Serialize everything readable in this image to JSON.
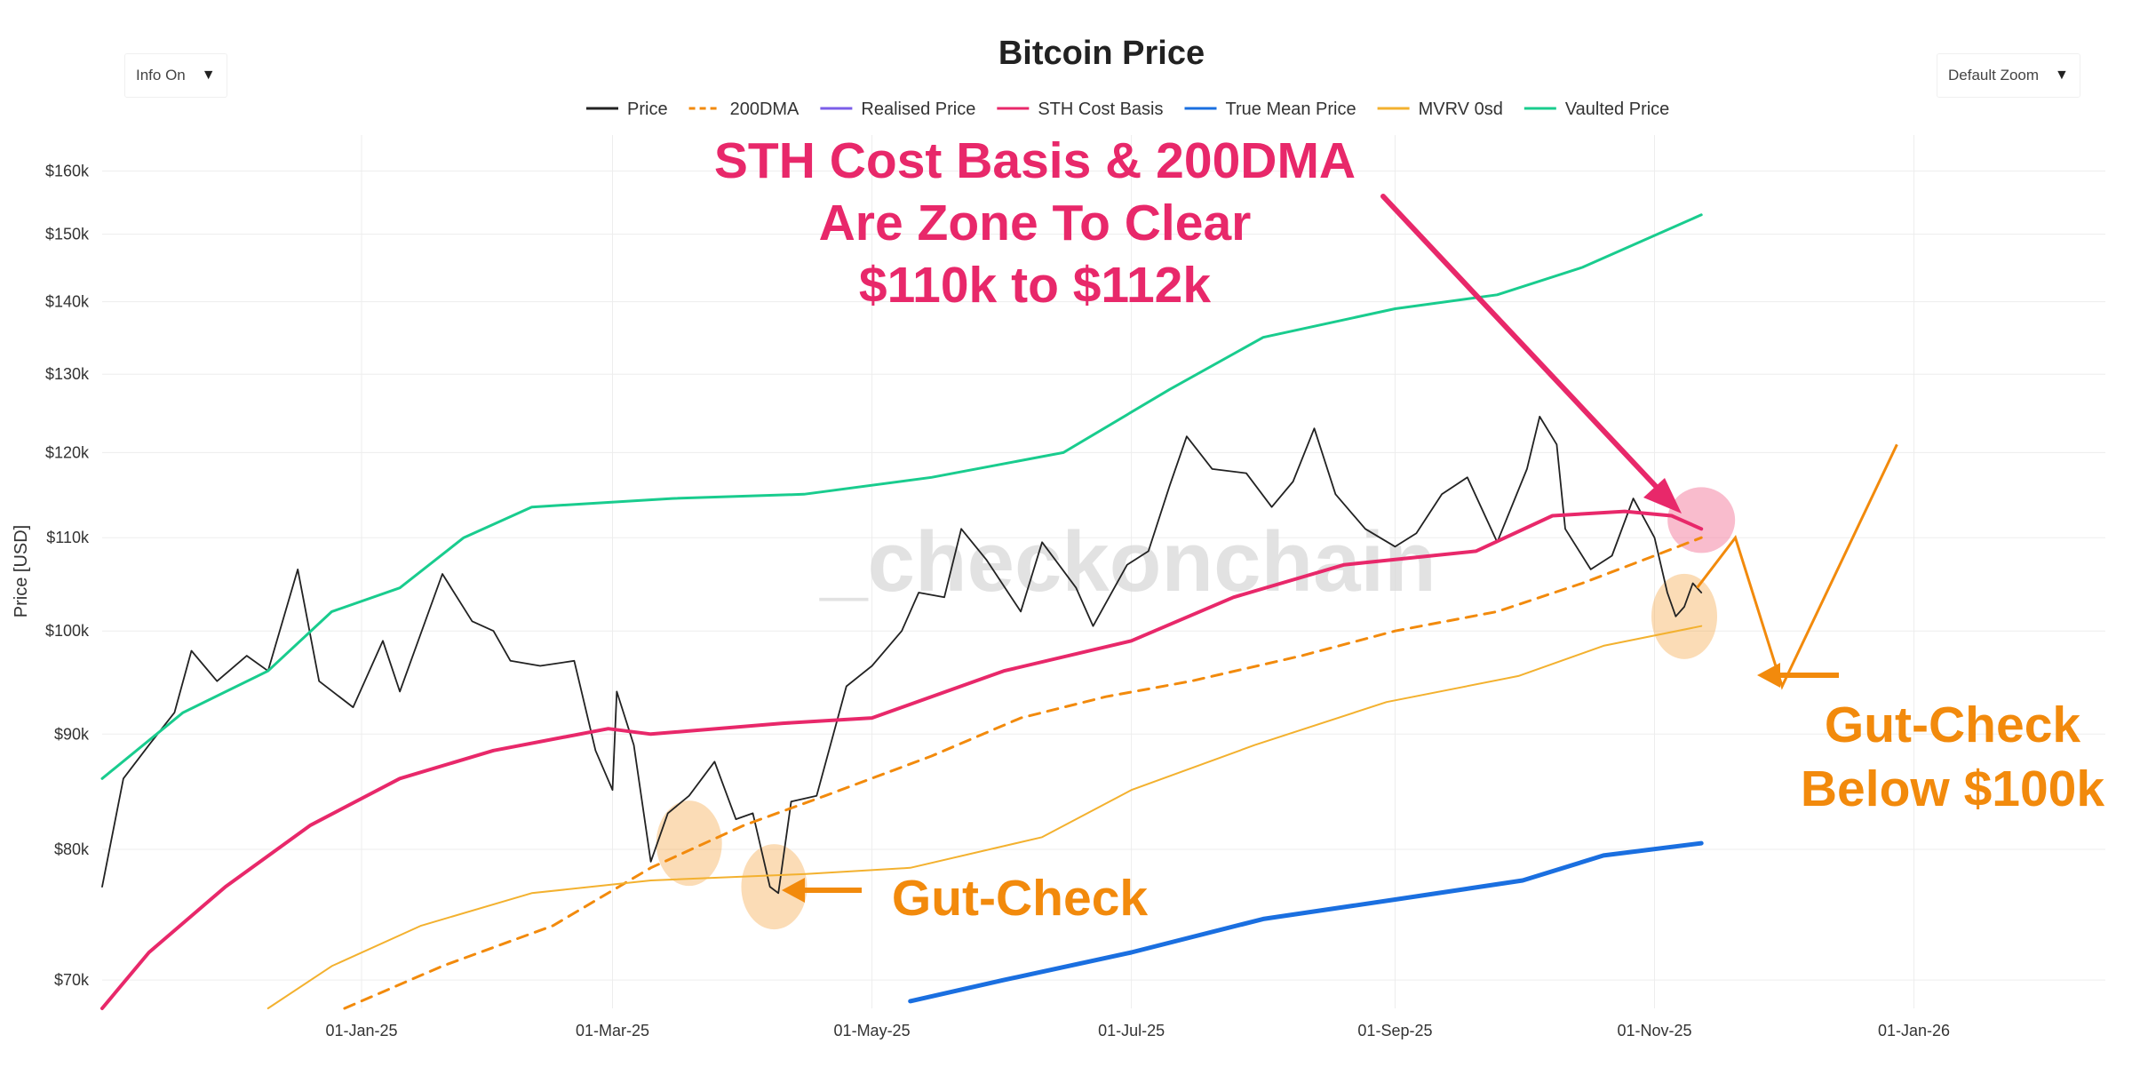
{
  "chart_data": {
    "type": "line",
    "title": "Bitcoin Price",
    "ylabel": "Price [USD]",
    "xlabel": "",
    "yscale": "log",
    "ylim": [
      68000,
      166000
    ],
    "xlim": [
      "2024-11-01",
      "2026-02-15"
    ],
    "x_ticks": [
      {
        "date": "2025-01-01",
        "label": "01-Jan-25"
      },
      {
        "date": "2025-03-01",
        "label": "01-Mar-25"
      },
      {
        "date": "2025-05-01",
        "label": "01-May-25"
      },
      {
        "date": "2025-07-01",
        "label": "01-Jul-25"
      },
      {
        "date": "2025-09-01",
        "label": "01-Sep-25"
      },
      {
        "date": "2025-11-01",
        "label": "01-Nov-25"
      },
      {
        "date": "2026-01-01",
        "label": "01-Jan-26"
      }
    ],
    "y_ticks": [
      {
        "value": 70000,
        "label": "$70k"
      },
      {
        "value": 80000,
        "label": "$80k"
      },
      {
        "value": 90000,
        "label": "$90k"
      },
      {
        "value": 100000,
        "label": "$100k"
      },
      {
        "value": 110000,
        "label": "$110k"
      },
      {
        "value": 120000,
        "label": "$120k"
      },
      {
        "value": 130000,
        "label": "$130k"
      },
      {
        "value": 140000,
        "label": "$140k"
      },
      {
        "value": 150000,
        "label": "$150k"
      },
      {
        "value": 160000,
        "label": "$160k"
      }
    ],
    "legend_position": "top-center",
    "series": [
      {
        "name": "Price",
        "color": "#222222",
        "style": "solid",
        "points": [
          [
            "2024-11-01",
            77000
          ],
          [
            "2024-11-06",
            86000
          ],
          [
            "2024-11-12",
            89000
          ],
          [
            "2024-11-18",
            92000
          ],
          [
            "2024-11-22",
            98000
          ],
          [
            "2024-11-28",
            95000
          ],
          [
            "2024-12-05",
            97500
          ],
          [
            "2024-12-10",
            96000
          ],
          [
            "2024-12-17",
            106500
          ],
          [
            "2024-12-22",
            95000
          ],
          [
            "2024-12-30",
            92500
          ],
          [
            "2025-01-06",
            99000
          ],
          [
            "2025-01-10",
            94000
          ],
          [
            "2025-01-20",
            106000
          ],
          [
            "2025-01-27",
            101000
          ],
          [
            "2025-02-01",
            100000
          ],
          [
            "2025-02-05",
            97000
          ],
          [
            "2025-02-12",
            96500
          ],
          [
            "2025-02-20",
            97000
          ],
          [
            "2025-02-25",
            88500
          ],
          [
            "2025-03-01",
            85000
          ],
          [
            "2025-03-02",
            94000
          ],
          [
            "2025-03-06",
            89000
          ],
          [
            "2025-03-10",
            79000
          ],
          [
            "2025-03-14",
            83000
          ],
          [
            "2025-03-19",
            84500
          ],
          [
            "2025-03-25",
            87500
          ],
          [
            "2025-03-30",
            82500
          ],
          [
            "2025-04-03",
            83000
          ],
          [
            "2025-04-07",
            77000
          ],
          [
            "2025-04-09",
            76500
          ],
          [
            "2025-04-12",
            84000
          ],
          [
            "2025-04-18",
            84500
          ],
          [
            "2025-04-25",
            94500
          ],
          [
            "2025-05-01",
            96500
          ],
          [
            "2025-05-08",
            100000
          ],
          [
            "2025-05-12",
            104000
          ],
          [
            "2025-05-18",
            103500
          ],
          [
            "2025-05-22",
            111000
          ],
          [
            "2025-05-28",
            107500
          ],
          [
            "2025-06-05",
            102000
          ],
          [
            "2025-06-10",
            109500
          ],
          [
            "2025-06-18",
            104500
          ],
          [
            "2025-06-22",
            100500
          ],
          [
            "2025-06-30",
            107000
          ],
          [
            "2025-07-05",
            108500
          ],
          [
            "2025-07-10",
            116000
          ],
          [
            "2025-07-14",
            122000
          ],
          [
            "2025-07-20",
            118000
          ],
          [
            "2025-07-28",
            117500
          ],
          [
            "2025-08-03",
            113500
          ],
          [
            "2025-08-08",
            116500
          ],
          [
            "2025-08-13",
            123000
          ],
          [
            "2025-08-18",
            115000
          ],
          [
            "2025-08-25",
            111000
          ],
          [
            "2025-09-01",
            109000
          ],
          [
            "2025-09-06",
            110500
          ],
          [
            "2025-09-12",
            115000
          ],
          [
            "2025-09-18",
            117000
          ],
          [
            "2025-09-25",
            109500
          ],
          [
            "2025-10-02",
            118000
          ],
          [
            "2025-10-05",
            124500
          ],
          [
            "2025-10-09",
            121000
          ],
          [
            "2025-10-11",
            111000
          ],
          [
            "2025-10-17",
            106500
          ],
          [
            "2025-10-22",
            108000
          ],
          [
            "2025-10-27",
            114500
          ],
          [
            "2025-11-01",
            110000
          ],
          [
            "2025-11-04",
            104000
          ],
          [
            "2025-11-06",
            101500
          ],
          [
            "2025-11-08",
            102500
          ],
          [
            "2025-11-10",
            105000
          ],
          [
            "2025-11-12",
            104000
          ]
        ]
      },
      {
        "name": "200DMA",
        "color": "#f28a0c",
        "style": "dashed",
        "points": [
          [
            "2024-12-28",
            68000
          ],
          [
            "2025-01-20",
            71000
          ],
          [
            "2025-02-15",
            74000
          ],
          [
            "2025-03-10",
            78500
          ],
          [
            "2025-04-01",
            82000
          ],
          [
            "2025-04-20",
            84500
          ],
          [
            "2025-05-15",
            88000
          ],
          [
            "2025-06-05",
            91500
          ],
          [
            "2025-06-25",
            93500
          ],
          [
            "2025-07-15",
            95000
          ],
          [
            "2025-08-10",
            97500
          ],
          [
            "2025-09-01",
            100000
          ],
          [
            "2025-09-25",
            102000
          ],
          [
            "2025-10-15",
            105000
          ],
          [
            "2025-11-01",
            108000
          ],
          [
            "2025-11-12",
            110000
          ]
        ]
      },
      {
        "name": "Realised Price",
        "color": "#7b5ee8",
        "style": "solid",
        "points": []
      },
      {
        "name": "STH Cost Basis",
        "color": "#e8286a",
        "style": "solid",
        "points": [
          [
            "2024-11-01",
            68000
          ],
          [
            "2024-11-12",
            72000
          ],
          [
            "2024-11-30",
            77000
          ],
          [
            "2024-12-20",
            82000
          ],
          [
            "2025-01-10",
            86000
          ],
          [
            "2025-02-01",
            88500
          ],
          [
            "2025-02-28",
            90500
          ],
          [
            "2025-03-10",
            90000
          ],
          [
            "2025-04-10",
            91000
          ],
          [
            "2025-05-01",
            91500
          ],
          [
            "2025-06-01",
            96000
          ],
          [
            "2025-07-01",
            99000
          ],
          [
            "2025-07-25",
            103500
          ],
          [
            "2025-08-20",
            107000
          ],
          [
            "2025-09-20",
            108500
          ],
          [
            "2025-10-08",
            112500
          ],
          [
            "2025-10-25",
            113000
          ],
          [
            "2025-11-05",
            112500
          ],
          [
            "2025-11-12",
            111000
          ]
        ]
      },
      {
        "name": "True Mean Price",
        "color": "#1a6fe0",
        "style": "solid",
        "points": [
          [
            "2025-05-10",
            68500
          ],
          [
            "2025-06-01",
            70000
          ],
          [
            "2025-07-01",
            72000
          ],
          [
            "2025-08-01",
            74500
          ],
          [
            "2025-09-01",
            76000
          ],
          [
            "2025-10-01",
            77500
          ],
          [
            "2025-10-20",
            79500
          ],
          [
            "2025-11-12",
            80500
          ]
        ]
      },
      {
        "name": "MVRV 0sd",
        "color": "#f3b12f",
        "style": "solid",
        "points": [
          [
            "2024-12-10",
            68000
          ],
          [
            "2024-12-25",
            71000
          ],
          [
            "2025-01-15",
            74000
          ],
          [
            "2025-02-10",
            76500
          ],
          [
            "2025-03-10",
            77500
          ],
          [
            "2025-04-15",
            78000
          ],
          [
            "2025-05-10",
            78500
          ],
          [
            "2025-06-10",
            81000
          ],
          [
            "2025-07-01",
            85000
          ],
          [
            "2025-07-30",
            89000
          ],
          [
            "2025-08-30",
            93000
          ],
          [
            "2025-09-30",
            95500
          ],
          [
            "2025-10-20",
            98500
          ],
          [
            "2025-11-12",
            100500
          ]
        ]
      },
      {
        "name": "Vaulted Price",
        "color": "#19cc8e",
        "style": "solid",
        "points": [
          [
            "2024-11-01",
            86000
          ],
          [
            "2024-11-20",
            92000
          ],
          [
            "2024-12-10",
            96000
          ],
          [
            "2024-12-25",
            102000
          ],
          [
            "2025-01-10",
            104500
          ],
          [
            "2025-01-25",
            110000
          ],
          [
            "2025-02-10",
            113500
          ],
          [
            "2025-03-15",
            114500
          ],
          [
            "2025-04-15",
            115000
          ],
          [
            "2025-05-15",
            117000
          ],
          [
            "2025-06-15",
            120000
          ],
          [
            "2025-07-10",
            128000
          ],
          [
            "2025-08-01",
            135000
          ],
          [
            "2025-09-01",
            139000
          ],
          [
            "2025-09-25",
            141000
          ],
          [
            "2025-10-15",
            145000
          ],
          [
            "2025-11-12",
            153000
          ]
        ]
      }
    ],
    "annotations": [
      {
        "id": "sth-title",
        "lines": [
          "STH Cost Basis & 200DMA",
          "Are Zone To Clear",
          "$110k to $112k"
        ],
        "color": "#e8286a"
      },
      {
        "id": "gut-check-left",
        "lines": [
          "Gut-Check"
        ],
        "color": "#f28a0c"
      },
      {
        "id": "gut-check-right",
        "lines": [
          "Gut-Check",
          "Below $100k"
        ],
        "color": "#f28a0c"
      }
    ],
    "projection": {
      "color": "#f28a0c",
      "points": [
        [
          "2025-11-11",
          104500
        ],
        [
          "2025-11-20",
          110000
        ],
        [
          "2025-12-01",
          94500
        ],
        [
          "2025-12-28",
          121000
        ]
      ]
    },
    "highlights": [
      {
        "date": "2025-03-19",
        "value": 80500,
        "color": "#f4a340"
      },
      {
        "date": "2025-04-08",
        "value": 77000,
        "color": "#f4a340"
      },
      {
        "date": "2025-11-08",
        "value": 101500,
        "color": "#f4a340"
      },
      {
        "date": "2025-11-12",
        "value": 112000,
        "color": "#f590ac"
      }
    ],
    "watermark": "_checkonchain"
  },
  "controls": {
    "info": {
      "label": "Info On",
      "caret": "▼"
    },
    "zoom": {
      "label": "Default Zoom",
      "caret": "▼"
    }
  }
}
